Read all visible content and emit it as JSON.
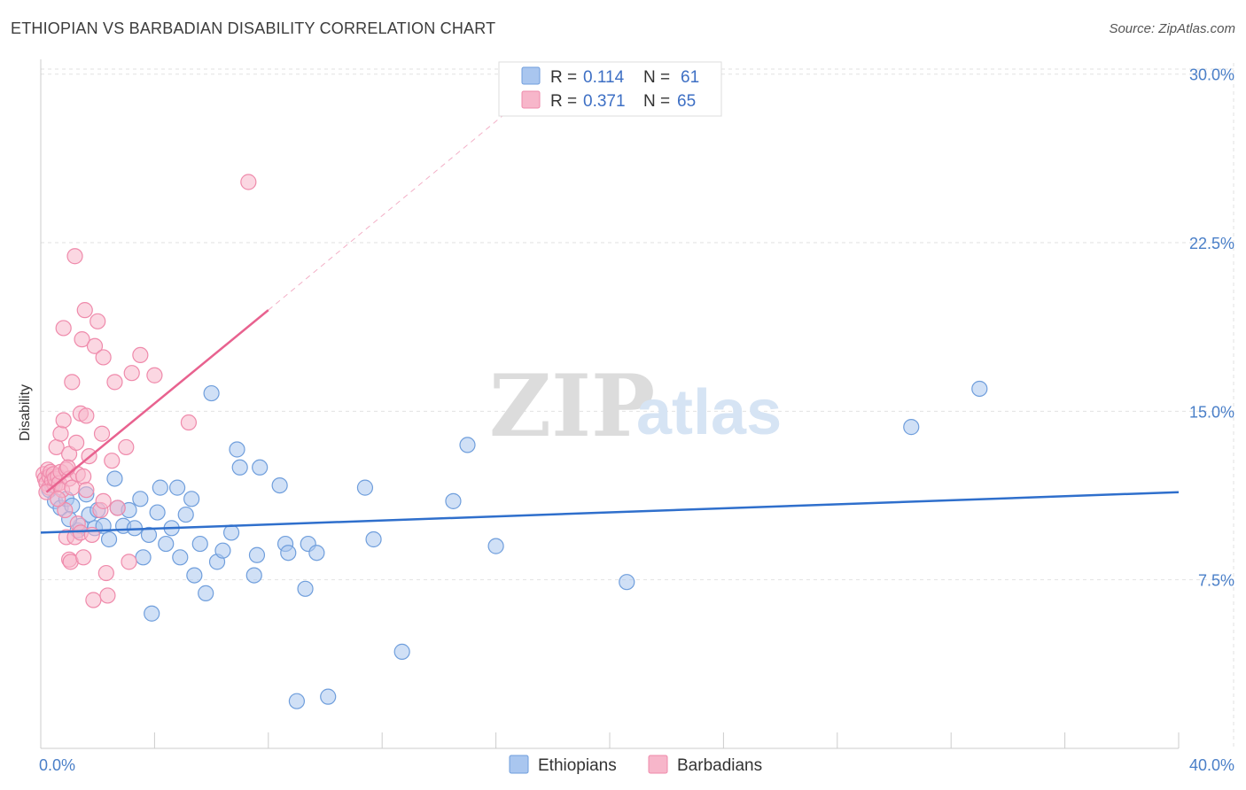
{
  "header": {
    "title": "ETHIOPIAN VS BARBADIAN DISABILITY CORRELATION CHART",
    "source": "Source: ZipAtlas.com"
  },
  "watermark": {
    "zip": "ZIP",
    "atlas": "atlas"
  },
  "colors": {
    "ethiopians_fill": "#a9c6ef",
    "ethiopians_stroke": "#6f9edc",
    "ethiopians_line": "#2f6fcc",
    "barbadians_fill": "#f7b6ca",
    "barbadians_stroke": "#ef8aab",
    "barbadians_line": "#e8628f",
    "tick_color": "#4a7fc8",
    "grid": "#e2e2e2"
  },
  "legend": {
    "rows": [
      {
        "r_label": "R =",
        "r_value": "0.114",
        "n_label": "N =",
        "n_value": "61"
      },
      {
        "r_label": "R =",
        "r_value": "0.371",
        "n_label": "N =",
        "n_value": "65"
      }
    ]
  },
  "chart_data": {
    "type": "scatter",
    "title": "ETHIOPIAN VS BARBADIAN DISABILITY CORRELATION CHART",
    "xlabel": "",
    "ylabel": "Disability",
    "xlim": [
      0,
      40
    ],
    "ylim": [
      0,
      30.5
    ],
    "x_tick_labels": [
      "0.0%",
      "40.0%"
    ],
    "y_ticks": [
      7.5,
      15.0,
      22.5,
      30.0
    ],
    "y_tick_labels": [
      "7.5%",
      "15.0%",
      "22.5%",
      "30.0%"
    ],
    "grid": true,
    "legend_position": "top-center",
    "series": [
      {
        "name": "Ethiopians",
        "r": 0.114,
        "n": 61,
        "trend": {
          "x": [
            0,
            40
          ],
          "y": [
            9.6,
            11.4
          ]
        },
        "points": [
          [
            0.3,
            11.5
          ],
          [
            0.5,
            11.0
          ],
          [
            0.7,
            10.7
          ],
          [
            0.9,
            11.1
          ],
          [
            1.1,
            10.8
          ],
          [
            1.3,
            9.7
          ],
          [
            1.4,
            9.9
          ],
          [
            1.6,
            11.3
          ],
          [
            1.7,
            10.4
          ],
          [
            1.9,
            9.8
          ],
          [
            2.0,
            10.6
          ],
          [
            2.2,
            9.9
          ],
          [
            2.4,
            9.3
          ],
          [
            2.6,
            12.0
          ],
          [
            2.7,
            10.7
          ],
          [
            2.9,
            9.9
          ],
          [
            3.1,
            10.6
          ],
          [
            3.3,
            9.8
          ],
          [
            3.5,
            11.1
          ],
          [
            3.6,
            8.5
          ],
          [
            3.8,
            9.5
          ],
          [
            3.9,
            6.0
          ],
          [
            4.1,
            10.5
          ],
          [
            4.2,
            11.6
          ],
          [
            4.4,
            9.1
          ],
          [
            4.6,
            9.8
          ],
          [
            4.8,
            11.6
          ],
          [
            4.9,
            8.5
          ],
          [
            5.1,
            10.4
          ],
          [
            5.3,
            11.1
          ],
          [
            5.4,
            7.7
          ],
          [
            5.6,
            9.1
          ],
          [
            5.8,
            6.9
          ],
          [
            6.0,
            15.8
          ],
          [
            6.2,
            8.3
          ],
          [
            6.4,
            8.8
          ],
          [
            6.7,
            9.6
          ],
          [
            6.9,
            13.3
          ],
          [
            7.0,
            12.5
          ],
          [
            7.5,
            7.7
          ],
          [
            7.6,
            8.6
          ],
          [
            7.7,
            12.5
          ],
          [
            8.4,
            11.7
          ],
          [
            8.6,
            9.1
          ],
          [
            8.7,
            8.7
          ],
          [
            9.0,
            2.1
          ],
          [
            9.3,
            7.1
          ],
          [
            9.4,
            9.1
          ],
          [
            9.7,
            8.7
          ],
          [
            10.1,
            2.3
          ],
          [
            11.4,
            11.6
          ],
          [
            11.7,
            9.3
          ],
          [
            12.7,
            4.3
          ],
          [
            14.5,
            11.0
          ],
          [
            15.0,
            13.5
          ],
          [
            16.0,
            9.0
          ],
          [
            20.6,
            7.4
          ],
          [
            30.6,
            14.3
          ],
          [
            33.0,
            16.0
          ],
          [
            0.4,
            11.7
          ],
          [
            1.0,
            10.2
          ]
        ]
      },
      {
        "name": "Barbadians",
        "r": 0.371,
        "n": 65,
        "trend": {
          "x": [
            0.2,
            8.0
          ],
          "y": [
            11.4,
            19.5
          ]
        },
        "trend_extension": {
          "x": [
            8.0,
            18.0
          ],
          "y": [
            19.5,
            30.0
          ]
        },
        "points": [
          [
            0.1,
            12.2
          ],
          [
            0.15,
            12.0
          ],
          [
            0.2,
            11.8
          ],
          [
            0.25,
            12.4
          ],
          [
            0.3,
            12.1
          ],
          [
            0.3,
            11.6
          ],
          [
            0.35,
            12.3
          ],
          [
            0.4,
            11.9
          ],
          [
            0.45,
            12.2
          ],
          [
            0.5,
            11.7
          ],
          [
            0.5,
            12.0
          ],
          [
            0.55,
            13.4
          ],
          [
            0.6,
            12.1
          ],
          [
            0.65,
            11.8
          ],
          [
            0.7,
            12.3
          ],
          [
            0.7,
            14.0
          ],
          [
            0.75,
            11.5
          ],
          [
            0.8,
            18.7
          ],
          [
            0.8,
            14.6
          ],
          [
            0.85,
            10.6
          ],
          [
            0.9,
            12.4
          ],
          [
            0.9,
            9.4
          ],
          [
            1.0,
            13.1
          ],
          [
            1.0,
            12.0
          ],
          [
            1.0,
            8.4
          ],
          [
            1.05,
            8.3
          ],
          [
            1.1,
            16.3
          ],
          [
            1.1,
            11.6
          ],
          [
            1.2,
            9.4
          ],
          [
            1.2,
            21.9
          ],
          [
            1.3,
            12.2
          ],
          [
            1.3,
            10.0
          ],
          [
            1.4,
            14.9
          ],
          [
            1.4,
            9.6
          ],
          [
            1.45,
            18.2
          ],
          [
            1.5,
            12.1
          ],
          [
            1.5,
            8.5
          ],
          [
            1.55,
            19.5
          ],
          [
            1.6,
            14.8
          ],
          [
            1.6,
            11.5
          ],
          [
            1.7,
            13.0
          ],
          [
            1.8,
            9.5
          ],
          [
            1.85,
            6.6
          ],
          [
            1.9,
            17.9
          ],
          [
            2.0,
            19.0
          ],
          [
            2.1,
            10.6
          ],
          [
            2.15,
            14.0
          ],
          [
            2.2,
            17.4
          ],
          [
            2.2,
            11.0
          ],
          [
            2.3,
            7.8
          ],
          [
            2.35,
            6.8
          ],
          [
            2.6,
            16.3
          ],
          [
            2.7,
            10.7
          ],
          [
            3.0,
            13.4
          ],
          [
            3.1,
            8.3
          ],
          [
            3.2,
            16.7
          ],
          [
            3.5,
            17.5
          ],
          [
            4.0,
            16.6
          ],
          [
            5.2,
            14.5
          ],
          [
            7.3,
            25.2
          ],
          [
            0.2,
            11.4
          ],
          [
            0.6,
            11.1
          ],
          [
            1.25,
            13.6
          ],
          [
            0.95,
            12.5
          ],
          [
            2.5,
            12.8
          ]
        ]
      }
    ]
  },
  "bottom_legend": {
    "ethiopians": "Ethiopians",
    "barbadians": "Barbadians"
  }
}
